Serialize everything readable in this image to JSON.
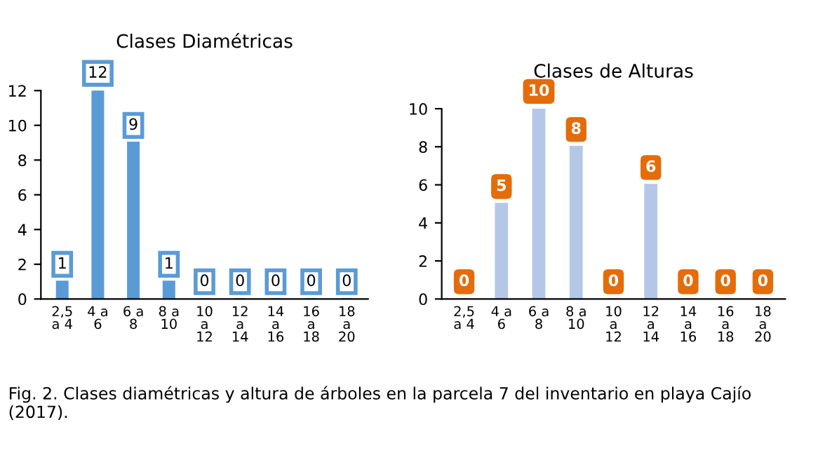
{
  "chart_data": [
    {
      "type": "bar",
      "title": "Clases Diamétricas",
      "categories": [
        "2,5\na 4",
        "4 a\n6",
        "6 a\n8",
        "8 a\n10",
        "10\na\n12",
        "12\na\n14",
        "14\na\n16",
        "16\na\n18",
        "18\na\n20"
      ],
      "values": [
        1,
        12,
        9,
        1,
        0,
        0,
        0,
        0,
        0
      ],
      "color": "#5b9bd5",
      "ylim": [
        0,
        12
      ],
      "yticks": [
        0,
        2,
        4,
        6,
        8,
        10,
        12
      ],
      "data_labels": true,
      "grid": false
    },
    {
      "type": "bar",
      "title": "Clases de Alturas",
      "categories": [
        "2,5\na 4",
        "4 a\n6",
        "6 a\n8",
        "8 a\n10",
        "10\na\n12",
        "12\na\n14",
        "14\na\n16",
        "16\na\n18",
        "18\na\n20"
      ],
      "values": [
        0,
        5,
        10,
        8,
        0,
        6,
        0,
        0,
        0
      ],
      "color": "#b4c7e7",
      "ylim": [
        0,
        10
      ],
      "yticks": [
        0,
        2,
        4,
        6,
        8,
        10
      ],
      "data_labels": true,
      "grid": false,
      "annotations": [
        "Fig. 2. Clases diamétricas y altura de árboles en la parcela 7 del inventario en playa Cajío (2017)."
      ]
    }
  ]
}
